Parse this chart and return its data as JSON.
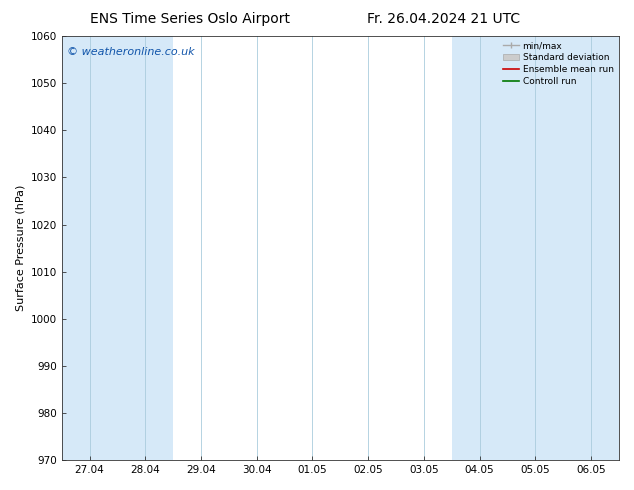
{
  "title_left": "ENS Time Series Oslo Airport",
  "title_right": "Fr. 26.04.2024 21 UTC",
  "ylabel": "Surface Pressure (hPa)",
  "watermark": "© weatheronline.co.uk",
  "ylim": [
    970,
    1060
  ],
  "yticks": [
    970,
    980,
    990,
    1000,
    1010,
    1020,
    1030,
    1040,
    1050,
    1060
  ],
  "x_labels": [
    "27.04",
    "28.04",
    "29.04",
    "30.04",
    "01.05",
    "02.05",
    "03.05",
    "04.05",
    "05.05",
    "06.05"
  ],
  "shaded_columns": [
    0,
    1,
    7,
    8,
    9
  ],
  "shaded_color": "#d6e9f8",
  "bg_color": "#ffffff",
  "plot_bg_color": "#ffffff",
  "grid_color": "#aaccdd",
  "legend_items": [
    {
      "label": "min/max",
      "color": "#aaaaaa",
      "style": "minmax"
    },
    {
      "label": "Standard deviation",
      "color": "#cccccc",
      "style": "stddev"
    },
    {
      "label": "Ensemble mean run",
      "color": "#cc0000",
      "style": "line"
    },
    {
      "label": "Controll run",
      "color": "#007700",
      "style": "line"
    }
  ],
  "title_fontsize": 10,
  "tick_fontsize": 7.5,
  "label_fontsize": 8,
  "watermark_fontsize": 8
}
